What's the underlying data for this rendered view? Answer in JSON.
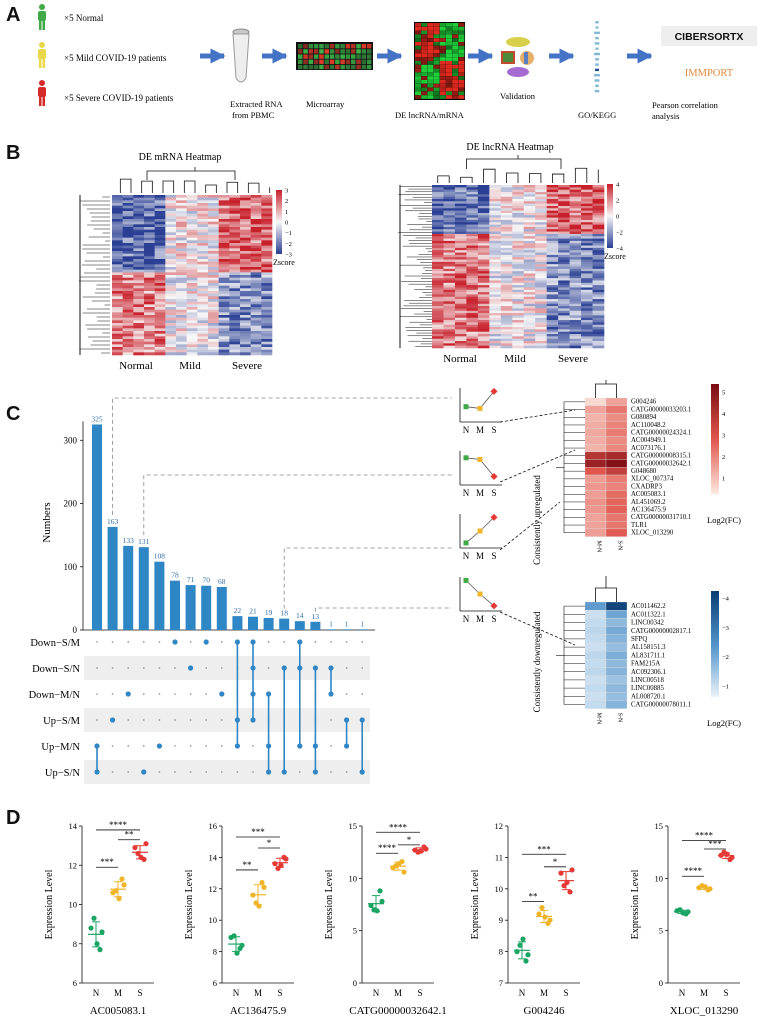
{
  "panels": {
    "a": "A",
    "b": "B",
    "c": "C",
    "d": "D"
  },
  "colors": {
    "normal_green": "#3faa46",
    "mild_yellow": "#e8d84a",
    "severe_red": "#d62a2a",
    "arrow_blue": "#4472c4",
    "bar_blue": "#2f86c5",
    "dot_green": "#1aa564",
    "dot_orange": "#f0b429",
    "dot_red": "#e53935"
  },
  "workflow": {
    "groups": [
      "×5 Normal",
      "×5 Mild COVID-19 patients",
      "×5 Severe COVID-19 patients"
    ],
    "steps": {
      "rna": [
        "Extracted RNA",
        "from PBMC"
      ],
      "microarray": "Microarray",
      "de": "DE lncRNA/mRNA",
      "validation": "Validation",
      "go": "GO/KEGG",
      "pearson": [
        "Pearson correlation",
        "analysis"
      ]
    },
    "logos": {
      "cibersort": "CIBERSORTX",
      "immport": "IMMPORT"
    }
  },
  "heatmaps": {
    "mrna": {
      "title": "DE mRNA Heatmap",
      "groups": [
        "Normal",
        "Mild",
        "Severe"
      ],
      "legend_title": "Zscore",
      "legend_ticks": [
        "3",
        "2",
        "1",
        "0",
        "−1",
        "−2",
        "−3"
      ]
    },
    "lncrna": {
      "title": "DE lncRNA Heatmap",
      "groups": [
        "Normal",
        "Mild",
        "Severe"
      ],
      "legend_title": "Zscore",
      "legend_ticks": [
        "4",
        "2",
        "0",
        "−2",
        "−4"
      ]
    }
  },
  "upset": {
    "ylabel": "Numbers",
    "yticks": [
      "0",
      "100",
      "200",
      "300"
    ],
    "set_rows": [
      "Down−S/M",
      "Down−S/N",
      "Down−M/N",
      "Up−S/M",
      "Up−M/N",
      "Up−S/N"
    ]
  },
  "trend_icons": {
    "labels": [
      "N",
      "M",
      "S"
    ]
  },
  "upregulated": {
    "title": "Consistently  upregulated",
    "legend_title": "Log2(FC)",
    "legend_ticks": [
      "5",
      "4",
      "3",
      "2",
      "1"
    ],
    "columns": [
      "M-N",
      "S-N"
    ],
    "genes": [
      "G004246",
      "CATG00000033203.1",
      "G080894",
      "AC110048.2",
      "CATG00000024324.1",
      "AC004949.1",
      "AC073176.1",
      "CATG00000008315.1",
      "CATG00000032642.1",
      "G048680",
      "XLOC_007374",
      "CXADRP3",
      "AC005083.1",
      "AL451069.2",
      "AC136475.9",
      "CATG00000031710.1",
      "TLR1",
      "XLOC_013290"
    ],
    "m_n": [
      0.6,
      1.6,
      1.3,
      1.4,
      1.5,
      1.4,
      1.3,
      4.2,
      4.9,
      3.0,
      1.7,
      1.8,
      1.7,
      1.9,
      1.8,
      1.6,
      1.6,
      1.7
    ],
    "s_n": [
      1.6,
      2.4,
      2.0,
      2.2,
      2.3,
      2.0,
      2.1,
      4.6,
      5.5,
      3.8,
      2.3,
      2.2,
      2.6,
      2.7,
      2.8,
      2.4,
      2.4,
      2.9
    ]
  },
  "downregulated": {
    "title": "Consistently  downregulated",
    "legend_title": "Log2(FC)",
    "legend_ticks": [
      "−4",
      "−3",
      "−2",
      "−1"
    ],
    "columns": [
      "M-N",
      "S-N"
    ],
    "genes": [
      "AC011462.2",
      "AC011322.1",
      "LINC00342",
      "CATG00000002817.1",
      "SFPQ",
      "AL158151.3",
      "AL831711.1",
      "FAM215A",
      "AC092306.1",
      "LINC00518",
      "LINC00885",
      "AL008720.1",
      "CATG00000078011.1"
    ],
    "m_n": [
      -2.6,
      -1.2,
      -1.3,
      -1.4,
      -1.3,
      -1.2,
      -1.4,
      -1.3,
      -1.4,
      -1.2,
      -1.3,
      -1.2,
      -1.3
    ],
    "s_n": [
      -4.6,
      -2.4,
      -2.0,
      -2.3,
      -2.1,
      -1.9,
      -2.2,
      -2.0,
      -2.1,
      -1.8,
      -2.0,
      -1.9,
      -2.1
    ]
  },
  "chart_data": [
    {
      "type": "bar",
      "title": "UpSet intersections",
      "xlabel": "",
      "ylabel": "Numbers",
      "ylim": [
        0,
        340
      ],
      "values": [
        325,
        163,
        133,
        131,
        108,
        78,
        71,
        70,
        68,
        22,
        21,
        19,
        18,
        14,
        13,
        1,
        1,
        1
      ],
      "sets": [
        "Down−S/M",
        "Down−S/N",
        "Down−M/N",
        "Up−S/M",
        "Up−M/N",
        "Up−S/N"
      ],
      "memberships": [
        [
          4,
          5
        ],
        [
          3
        ],
        [
          2
        ],
        [
          5
        ],
        [
          4
        ],
        [
          0
        ],
        [
          1
        ],
        [
          0
        ],
        [
          2
        ],
        [
          0,
          3,
          4
        ],
        [
          0,
          1,
          2,
          3
        ],
        [
          2,
          4,
          5
        ],
        [
          1,
          5
        ],
        [
          0,
          1,
          4
        ],
        [
          1,
          4,
          5
        ],
        [
          1,
          2
        ],
        [
          3,
          4
        ],
        [
          3,
          5
        ]
      ]
    },
    {
      "type": "scatter",
      "title": "AC005083.1",
      "xlabel": "AC005083.1",
      "ylabel": "Expression Level",
      "categories": [
        "N",
        "M",
        "S"
      ],
      "ylim": [
        6,
        14
      ],
      "yticks": [
        "6",
        "8",
        "10",
        "12",
        "14"
      ],
      "groups": [
        [
          8.8,
          7.7,
          9.3,
          8.6,
          8.0
        ],
        [
          10.6,
          11.3,
          10.7,
          11.0,
          10.3
        ],
        [
          12.9,
          12.3,
          12.6,
          13.1,
          12.4
        ]
      ],
      "comparisons": [
        {
          "from": 0,
          "to": 1,
          "label": "***",
          "y": 11.9
        },
        {
          "from": 1,
          "to": 2,
          "label": "**",
          "y": 13.3
        },
        {
          "from": 0,
          "to": 2,
          "label": "****",
          "y": 13.8
        }
      ]
    },
    {
      "type": "scatter",
      "title": "AC136475.9",
      "xlabel": "AC136475.9",
      "ylabel": "Expression Level",
      "categories": [
        "N",
        "M",
        "S"
      ],
      "ylim": [
        6,
        16
      ],
      "yticks": [
        "6",
        "8",
        "10",
        "12",
        "14",
        "16"
      ],
      "groups": [
        [
          8.9,
          8.2,
          9.0,
          8.4,
          7.9
        ],
        [
          11.6,
          12.4,
          11.1,
          12.1,
          10.9
        ],
        [
          13.6,
          14.0,
          13.3,
          13.9,
          13.5
        ]
      ],
      "comparisons": [
        {
          "from": 0,
          "to": 1,
          "label": "**",
          "y": 13.2
        },
        {
          "from": 1,
          "to": 2,
          "label": "*",
          "y": 14.6
        },
        {
          "from": 0,
          "to": 2,
          "label": "***",
          "y": 15.3
        }
      ]
    },
    {
      "type": "scatter",
      "title": "CATG00000032642.1",
      "xlabel": "CATG00000032642.1",
      "ylabel": "Expression Level",
      "categories": [
        "N",
        "M",
        "S"
      ],
      "ylim": [
        0,
        15
      ],
      "yticks": [
        "0",
        "5",
        "10",
        "15"
      ],
      "groups": [
        [
          7.4,
          8.8,
          7.0,
          7.8,
          6.9
        ],
        [
          11.0,
          11.6,
          11.2,
          10.6,
          11.4
        ],
        [
          12.7,
          13.0,
          12.5,
          12.8,
          12.6
        ]
      ],
      "comparisons": [
        {
          "from": 0,
          "to": 1,
          "label": "****",
          "y": 12.4
        },
        {
          "from": 1,
          "to": 2,
          "label": "*",
          "y": 13.2
        },
        {
          "from": 0,
          "to": 2,
          "label": "****",
          "y": 14.4
        }
      ]
    },
    {
      "type": "scatter",
      "title": "G004246",
      "xlabel": "G004246",
      "ylabel": "Expression Level",
      "categories": [
        "N",
        "M",
        "S"
      ],
      "ylim": [
        7,
        12
      ],
      "yticks": [
        "7",
        "8",
        "9",
        "10",
        "11",
        "12"
      ],
      "groups": [
        [
          8.0,
          7.7,
          8.2,
          7.9,
          8.4
        ],
        [
          9.2,
          8.9,
          9.4,
          9.0,
          9.1
        ],
        [
          10.5,
          9.9,
          10.1,
          10.6,
          10.2
        ]
      ],
      "comparisons": [
        {
          "from": 0,
          "to": 1,
          "label": "**",
          "y": 9.6
        },
        {
          "from": 1,
          "to": 2,
          "label": "*",
          "y": 10.7
        },
        {
          "from": 0,
          "to": 2,
          "label": "***",
          "y": 11.1
        }
      ]
    },
    {
      "type": "scatter",
      "title": "XLOC_013290",
      "xlabel": "XLOC_013290",
      "ylabel": "Expression Level",
      "categories": [
        "N",
        "M",
        "S"
      ],
      "ylim": [
        0,
        15
      ],
      "yticks": [
        "0",
        "5",
        "10",
        "15"
      ],
      "groups": [
        [
          6.9,
          6.6,
          7.0,
          6.8,
          6.7
        ],
        [
          9.1,
          8.9,
          9.3,
          9.0,
          9.2
        ],
        [
          12.2,
          11.8,
          12.5,
          12.0,
          12.3
        ]
      ],
      "comparisons": [
        {
          "from": 0,
          "to": 1,
          "label": "****",
          "y": 10.2
        },
        {
          "from": 1,
          "to": 2,
          "label": "***",
          "y": 12.8
        },
        {
          "from": 0,
          "to": 2,
          "label": "****",
          "y": 13.6
        }
      ]
    }
  ]
}
